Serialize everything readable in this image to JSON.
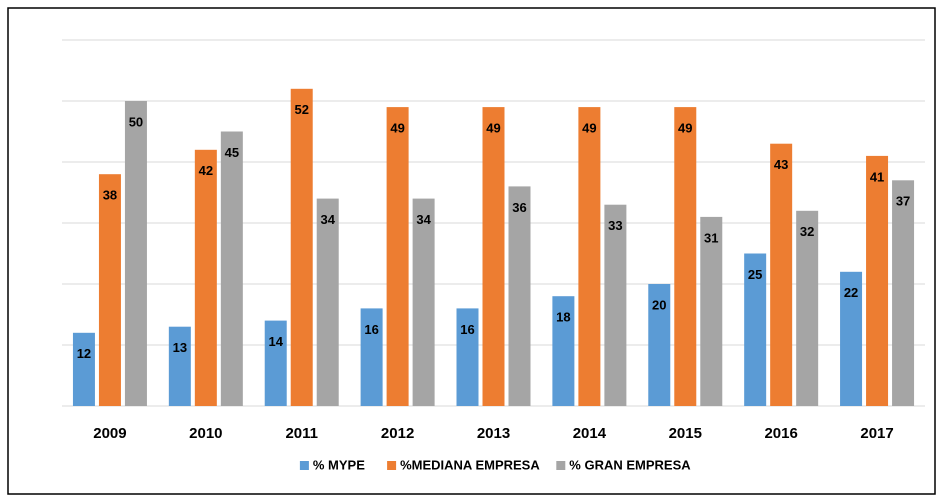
{
  "chart_data": {
    "type": "bar",
    "categories": [
      "2009",
      "2010",
      "2011",
      "2012",
      "2013",
      "2014",
      "2015",
      "2016",
      "2017"
    ],
    "series": [
      {
        "name": "% MYPE",
        "color": "#5b9bd5",
        "values": [
          12,
          13,
          14,
          16,
          16,
          18,
          20,
          25,
          22
        ]
      },
      {
        "name": "%MEDIANA EMPRESA",
        "color": "#ed7d31",
        "values": [
          38,
          42,
          52,
          49,
          49,
          49,
          49,
          43,
          41
        ]
      },
      {
        "name": "% GRAN EMPRESA",
        "color": "#a5a5a5",
        "values": [
          50,
          45,
          34,
          34,
          36,
          33,
          31,
          32,
          37
        ]
      }
    ],
    "ylim": [
      0,
      60
    ],
    "yticks": [
      0,
      10,
      20,
      30,
      40,
      50,
      60
    ],
    "grid": true,
    "legend": "bottom"
  }
}
